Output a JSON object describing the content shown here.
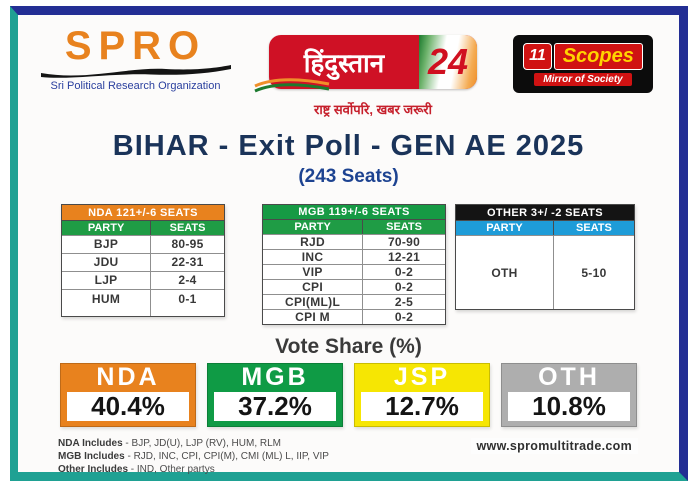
{
  "header": {
    "spro": {
      "name": "SPRO",
      "subtitle": "Sri Political Research Organization"
    },
    "hindustan": {
      "name": "हिंदुस्तान",
      "number": "24",
      "tagline": "राष्ट्र सर्वोपरि, खबर जरूरी"
    },
    "scopes": {
      "number": "11",
      "name": "Scopes",
      "tagline": "Mirror of Society"
    }
  },
  "title": "BIHAR - Exit Poll - GEN AE 2025",
  "subtitle": "(243 Seats)",
  "tables": [
    {
      "id": "nda",
      "header": "NDA 121+/-6 SEATS",
      "header_bg": "#e8821e",
      "header_fg": "#ffffff",
      "subheader_bg": "#1f9c45",
      "subheader_fg": "#ffffff",
      "columns": [
        "PARTY",
        "SEATS"
      ],
      "rows": [
        [
          "BJP",
          "80-95"
        ],
        [
          "JDU",
          "22-31"
        ],
        [
          "LJP",
          "2-4"
        ],
        [
          "HUM",
          "0-1"
        ]
      ]
    },
    {
      "id": "mgb",
      "header": "MGB 119+/-6 SEATS",
      "header_bg": "#169a44",
      "header_fg": "#ffffff",
      "subheader_bg": "#1f9c45",
      "subheader_fg": "#ffffff",
      "columns": [
        "PARTY",
        "SEATS"
      ],
      "rows": [
        [
          "RJD",
          "70-90"
        ],
        [
          "INC",
          "12-21"
        ],
        [
          "VIP",
          "0-2"
        ],
        [
          "CPI",
          "0-2"
        ],
        [
          "CPI(ML)L",
          "2-5"
        ],
        [
          "CPI M",
          "0-2"
        ]
      ]
    },
    {
      "id": "other",
      "header": "OTHER 3+/ -2 SEATS",
      "header_bg": "#141414",
      "header_fg": "#ffffff",
      "subheader_bg": "#1e9cd8",
      "subheader_fg": "#ffffff",
      "columns": [
        "PARTY",
        "SEATS"
      ],
      "rows": [
        [
          "OTH",
          "5-10"
        ]
      ]
    }
  ],
  "vote_share": {
    "title": "Vote Share (%)",
    "cards": [
      {
        "party": "NDA",
        "value": "40.4%",
        "color": "#e8821e"
      },
      {
        "party": "MGB",
        "value": "37.2%",
        "color": "#0f9b45"
      },
      {
        "party": "JSP",
        "value": "12.7%",
        "color": "#f6e603"
      },
      {
        "party": "OTH",
        "value": "10.8%",
        "color": "#aeaeae"
      }
    ]
  },
  "notes": [
    {
      "label": "NDA Includes",
      "text": " - BJP, JD(U), LJP (RV), HUM, RLM"
    },
    {
      "label": "MGB Includes",
      "text": " - RJD, INC, CPI, CPI(M), CMI (ML) L, IIP, VIP"
    },
    {
      "label": "Other Includes",
      "text": " - IND, Other partys"
    }
  ],
  "footer": {
    "website": "www.spromultitrade.com"
  },
  "chart_data": [
    {
      "type": "table",
      "title": "NDA 121+/-6 SEATS",
      "columns": [
        "PARTY",
        "SEATS"
      ],
      "rows": [
        [
          "BJP",
          "80-95"
        ],
        [
          "JDU",
          "22-31"
        ],
        [
          "LJP",
          "2-4"
        ],
        [
          "HUM",
          "0-1"
        ]
      ]
    },
    {
      "type": "table",
      "title": "MGB 119+/-6 SEATS",
      "columns": [
        "PARTY",
        "SEATS"
      ],
      "rows": [
        [
          "RJD",
          "70-90"
        ],
        [
          "INC",
          "12-21"
        ],
        [
          "VIP",
          "0-2"
        ],
        [
          "CPI",
          "0-2"
        ],
        [
          "CPI(ML)L",
          "2-5"
        ],
        [
          "CPI M",
          "0-2"
        ]
      ]
    },
    {
      "type": "table",
      "title": "OTHER 3+/ -2 SEATS",
      "columns": [
        "PARTY",
        "SEATS"
      ],
      "rows": [
        [
          "OTH",
          "5-10"
        ]
      ]
    },
    {
      "type": "bar",
      "title": "Vote Share (%)",
      "categories": [
        "NDA",
        "MGB",
        "JSP",
        "OTH"
      ],
      "values": [
        40.4,
        37.2,
        12.7,
        10.8
      ],
      "ylabel": "Vote Share (%)"
    }
  ]
}
